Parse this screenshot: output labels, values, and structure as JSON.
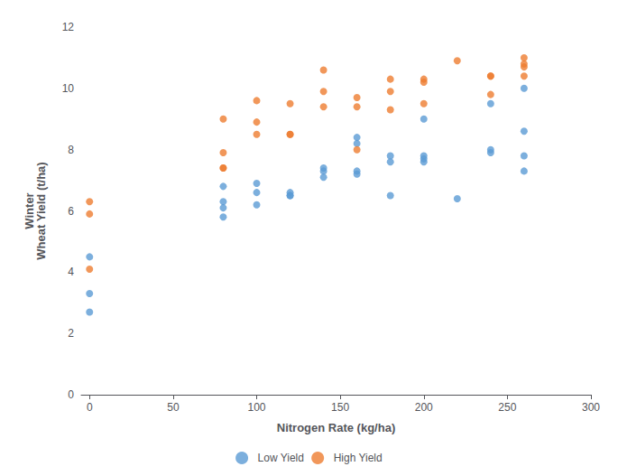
{
  "chart_data": {
    "type": "scatter",
    "xlabel": "Nitrogen Rate (kg/ha)",
    "ylabel": "Winter\nWheat Yield (t/ha)",
    "xlim": [
      -5,
      300
    ],
    "ylim": [
      0,
      12
    ],
    "xticks": [
      0,
      50,
      100,
      150,
      200,
      250,
      300
    ],
    "yticks": [
      0,
      2,
      4,
      6,
      8,
      10,
      12
    ],
    "grid": false,
    "legend": "bottom",
    "marker": "circle",
    "series": [
      {
        "name": "Low Yield",
        "color": "#5B9BD5",
        "x": [
          0,
          0,
          0,
          80,
          80,
          80,
          80,
          100,
          100,
          100,
          120,
          120,
          120,
          140,
          140,
          140,
          160,
          160,
          160,
          160,
          180,
          180,
          180,
          200,
          200,
          200,
          200,
          220,
          240,
          240,
          240,
          260,
          260,
          260,
          260
        ],
        "values": [
          4.5,
          3.3,
          2.7,
          6.8,
          6.3,
          6.1,
          5.8,
          6.9,
          6.6,
          6.2,
          6.6,
          6.5,
          6.5,
          7.4,
          7.3,
          7.1,
          8.4,
          8.2,
          7.3,
          7.2,
          7.8,
          7.6,
          6.5,
          9.0,
          7.8,
          7.7,
          7.6,
          6.4,
          9.5,
          8.0,
          7.9,
          10.0,
          8.6,
          7.8,
          7.3
        ]
      },
      {
        "name": "High Yield",
        "color": "#ED7D31",
        "x": [
          0,
          0,
          0,
          80,
          80,
          80,
          80,
          100,
          100,
          100,
          120,
          120,
          120,
          140,
          140,
          140,
          160,
          160,
          160,
          180,
          180,
          180,
          200,
          200,
          200,
          220,
          240,
          240,
          240,
          260,
          260,
          260,
          260
        ],
        "values": [
          6.3,
          5.9,
          4.1,
          9.0,
          7.9,
          7.4,
          7.4,
          9.6,
          8.9,
          8.5,
          9.5,
          8.5,
          8.5,
          10.6,
          9.9,
          9.4,
          9.7,
          9.4,
          8.0,
          10.3,
          9.9,
          9.3,
          10.3,
          10.2,
          9.5,
          10.9,
          10.4,
          10.4,
          9.8,
          11.0,
          10.8,
          10.7,
          10.4
        ]
      }
    ]
  }
}
